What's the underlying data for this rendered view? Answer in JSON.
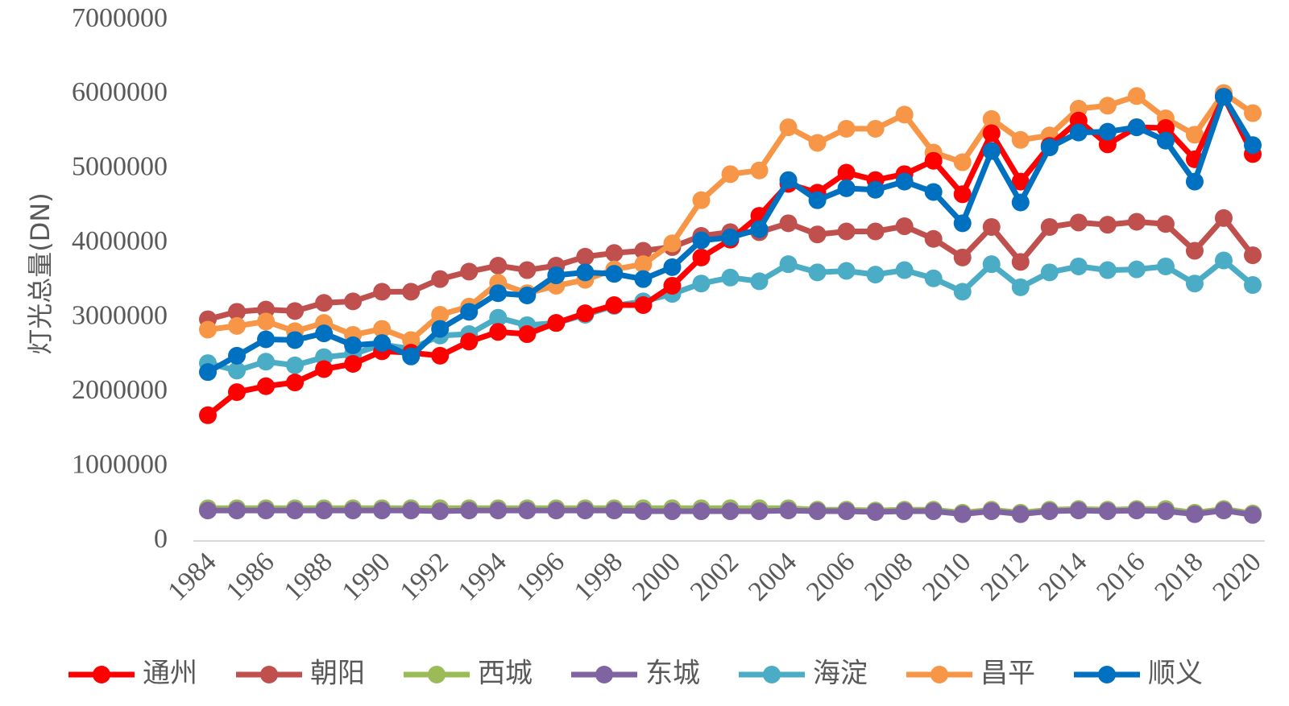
{
  "chart_data": {
    "type": "line",
    "title": "",
    "xlabel": "",
    "ylabel": "灯光总量(DN)",
    "ylim": [
      0,
      7000000
    ],
    "yticks": [
      0,
      1000000,
      2000000,
      3000000,
      4000000,
      5000000,
      6000000,
      7000000
    ],
    "ytick_labels": [
      "0",
      "1000000",
      "2000000",
      "3000000",
      "4000000",
      "5000000",
      "6000000",
      "7000000"
    ],
    "xtick_labels": [
      "1984",
      "1986",
      "1988",
      "1990",
      "1992",
      "1994",
      "1996",
      "1998",
      "2000",
      "2002",
      "2004",
      "2006",
      "2008",
      "2010",
      "2012",
      "2014",
      "2016",
      "2018",
      "2020"
    ],
    "xtick_values": [
      1984,
      1986,
      1988,
      1990,
      1992,
      1994,
      1996,
      1998,
      2000,
      2002,
      2004,
      2006,
      2008,
      2010,
      2012,
      2014,
      2016,
      2018,
      2020
    ],
    "x": [
      1984,
      1985,
      1986,
      1987,
      1988,
      1989,
      1990,
      1991,
      1992,
      1993,
      1994,
      1995,
      1996,
      1997,
      1998,
      1999,
      2000,
      2001,
      2002,
      2003,
      2004,
      2005,
      2006,
      2007,
      2008,
      2009,
      2010,
      2011,
      2012,
      2013,
      2014,
      2015,
      2016,
      2017,
      2018,
      2019,
      2020
    ],
    "legend_position": "bottom",
    "grid": false,
    "series": [
      {
        "name": "朝阳",
        "color": "#C0504D",
        "values": [
          2980000,
          3080000,
          3110000,
          3090000,
          3200000,
          3220000,
          3350000,
          3350000,
          3520000,
          3620000,
          3700000,
          3640000,
          3700000,
          3820000,
          3870000,
          3900000,
          3950000,
          4100000,
          4150000,
          4150000,
          4270000,
          4120000,
          4160000,
          4160000,
          4230000,
          4060000,
          3810000,
          4220000,
          3750000,
          4220000,
          4280000,
          4250000,
          4290000,
          4260000,
          3900000,
          4340000,
          3840000
        ]
      },
      {
        "name": "西城",
        "color": "#9BBB59",
        "values": [
          440000,
          440000,
          440000,
          440000,
          440000,
          440000,
          440000,
          440000,
          440000,
          440000,
          440000,
          440000,
          440000,
          440000,
          440000,
          440000,
          440000,
          440000,
          440000,
          440000,
          440000,
          420000,
          420000,
          410000,
          420000,
          420000,
          380000,
          420000,
          380000,
          420000,
          430000,
          420000,
          430000,
          430000,
          380000,
          430000,
          370000
        ]
      },
      {
        "name": "东城",
        "color": "#8064A2",
        "values": [
          410000,
          410000,
          410000,
          410000,
          410000,
          410000,
          410000,
          410000,
          400000,
          410000,
          410000,
          410000,
          410000,
          410000,
          410000,
          400000,
          400000,
          400000,
          400000,
          400000,
          410000,
          400000,
          400000,
          390000,
          400000,
          400000,
          360000,
          400000,
          360000,
          400000,
          410000,
          400000,
          410000,
          400000,
          360000,
          410000,
          350000
        ]
      },
      {
        "name": "海淀",
        "color": "#4BACC6",
        "values": [
          2390000,
          2290000,
          2410000,
          2360000,
          2470000,
          2510000,
          2640000,
          2580000,
          2760000,
          2780000,
          3000000,
          2900000,
          2930000,
          3040000,
          3160000,
          3220000,
          3320000,
          3460000,
          3540000,
          3490000,
          3720000,
          3610000,
          3630000,
          3580000,
          3640000,
          3530000,
          3350000,
          3720000,
          3410000,
          3610000,
          3690000,
          3640000,
          3650000,
          3690000,
          3460000,
          3770000,
          3440000
        ]
      },
      {
        "name": "昌平",
        "color": "#F79646",
        "values": [
          2840000,
          2890000,
          2950000,
          2820000,
          2930000,
          2770000,
          2850000,
          2700000,
          3040000,
          3150000,
          3470000,
          3330000,
          3430000,
          3510000,
          3650000,
          3720000,
          4000000,
          4580000,
          4930000,
          4980000,
          5560000,
          5350000,
          5540000,
          5540000,
          5730000,
          5220000,
          5090000,
          5670000,
          5390000,
          5450000,
          5810000,
          5850000,
          5980000,
          5680000,
          5460000,
          6020000,
          5750000
        ]
      },
      {
        "name": "通州",
        "color": "#FF0000",
        "values": [
          1690000,
          2000000,
          2080000,
          2130000,
          2310000,
          2380000,
          2550000,
          2530000,
          2490000,
          2680000,
          2810000,
          2780000,
          2930000,
          3060000,
          3170000,
          3170000,
          3430000,
          3810000,
          4050000,
          4370000,
          4800000,
          4680000,
          4950000,
          4850000,
          4930000,
          5110000,
          4660000,
          5480000,
          4830000,
          5310000,
          5650000,
          5330000,
          5560000,
          5550000,
          5130000,
          5970000,
          5200000
        ]
      },
      {
        "name": "顺义",
        "color": "#0070C0",
        "values": [
          2270000,
          2490000,
          2710000,
          2700000,
          2790000,
          2630000,
          2660000,
          2480000,
          2850000,
          3080000,
          3330000,
          3300000,
          3570000,
          3610000,
          3590000,
          3520000,
          3680000,
          4040000,
          4080000,
          4190000,
          4850000,
          4580000,
          4740000,
          4720000,
          4830000,
          4690000,
          4270000,
          5240000,
          4550000,
          5290000,
          5490000,
          5500000,
          5560000,
          5380000,
          4830000,
          5970000,
          5320000
        ]
      }
    ],
    "legend_order": [
      "通州",
      "朝阳",
      "西城",
      "东城",
      "海淀",
      "昌平",
      "顺义"
    ]
  }
}
